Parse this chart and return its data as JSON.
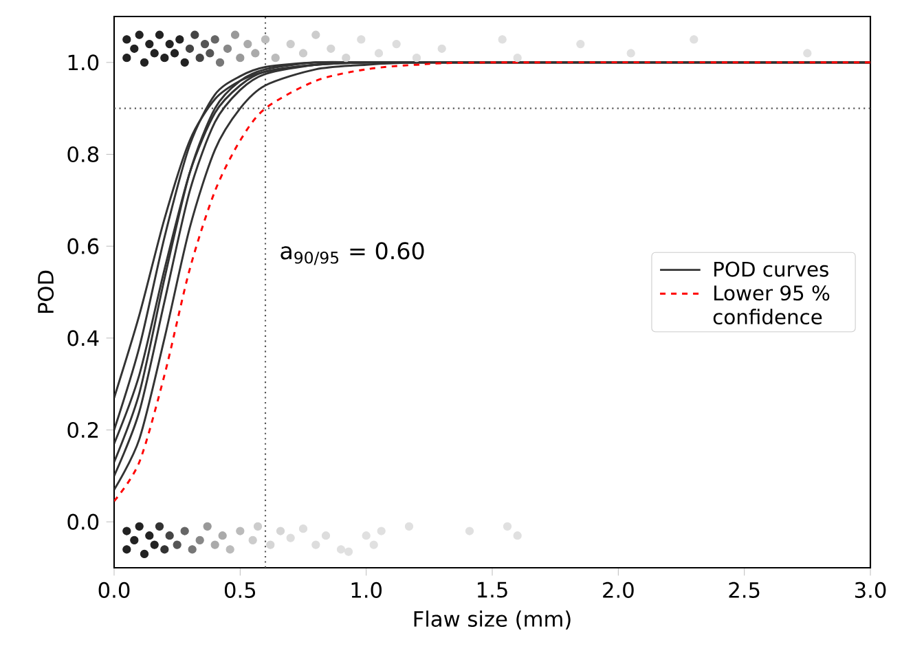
{
  "chart_data": {
    "type": "line",
    "xlabel": "Flaw size (mm)",
    "ylabel": "POD",
    "xlim": [
      0,
      3.0
    ],
    "ylim": [
      -0.1,
      1.1
    ],
    "xticks": [
      {
        "value": 0,
        "label": "0.0"
      },
      {
        "value": 0.5,
        "label": "0.5"
      },
      {
        "value": 1.0,
        "label": "1.0"
      },
      {
        "value": 1.5,
        "label": "1.5"
      },
      {
        "value": 2.0,
        "label": "2.0"
      },
      {
        "value": 2.5,
        "label": "2.5"
      },
      {
        "value": 3.0,
        "label": "3.0"
      }
    ],
    "yticks": [
      {
        "value": 0,
        "label": "0.0"
      },
      {
        "value": 0.2,
        "label": "0.2"
      },
      {
        "value": 0.4,
        "label": "0.4"
      },
      {
        "value": 0.6,
        "label": "0.6"
      },
      {
        "value": 0.8,
        "label": "0.8"
      },
      {
        "value": 1.0,
        "label": "1.0"
      }
    ],
    "legend": "right",
    "grid": false,
    "annotations": [
      "a$_{90/95}$ = 0.60"
    ],
    "ref_lines": [
      {
        "axis": "x",
        "value": 0.6,
        "color": "#555555",
        "line_style": "dotted"
      },
      {
        "axis": "y",
        "value": 0.9,
        "color": "#555555",
        "line_style": "dotted"
      }
    ],
    "series": [
      {
        "type": "scatter",
        "marker": "circle",
        "x": [
          0.05,
          0.05,
          0.08,
          0.1,
          0.12,
          0.14,
          0.16,
          0.18,
          0.2,
          0.22,
          0.24,
          0.26,
          0.28,
          0.3,
          0.32,
          0.34,
          0.36,
          0.38,
          0.4,
          0.42,
          0.45,
          0.48,
          0.5,
          0.53,
          0.56,
          0.6,
          0.64,
          0.7,
          0.75,
          0.8,
          0.86,
          0.92,
          0.98,
          1.05,
          1.12,
          1.2,
          1.3,
          1.54,
          1.6,
          1.85,
          2.05,
          2.3,
          2.75
        ],
        "values": [
          1.01,
          1.05,
          1.03,
          1.06,
          1.0,
          1.04,
          1.02,
          1.06,
          1.01,
          1.04,
          1.02,
          1.05,
          1.0,
          1.03,
          1.06,
          1.01,
          1.04,
          1.02,
          1.05,
          1.0,
          1.03,
          1.06,
          1.01,
          1.04,
          1.02,
          1.05,
          1.01,
          1.04,
          1.02,
          1.06,
          1.03,
          1.01,
          1.05,
          1.02,
          1.04,
          1.01,
          1.03,
          1.05,
          1.01,
          1.04,
          1.02,
          1.05,
          1.02
        ],
        "colors": [
          "#222222",
          "#222222",
          "#222222",
          "#222222",
          "#222222",
          "#222222",
          "#222222",
          "#222222",
          "#222222",
          "#222222",
          "#222222",
          "#222222",
          "#222222",
          "#444444",
          "#444444",
          "#444444",
          "#555555",
          "#555555",
          "#666666",
          "#777777",
          "#888888",
          "#999999",
          "#999999",
          "#aaaaaa",
          "#aaaaaa",
          "#bbbbbb",
          "#bbbbbb",
          "#cccccc",
          "#cccccc",
          "#cccccc",
          "#d5d5d5",
          "#d5d5d5",
          "#dddddd",
          "#dddddd",
          "#dddddd",
          "#dddddd",
          "#dddddd",
          "#e0e0e0",
          "#e0e0e0",
          "#e0e0e0",
          "#e0e0e0",
          "#e0e0e0",
          "#e0e0e0"
        ]
      },
      {
        "type": "scatter",
        "marker": "circle",
        "x": [
          0.05,
          0.05,
          0.08,
          0.1,
          0.12,
          0.14,
          0.16,
          0.18,
          0.2,
          0.22,
          0.25,
          0.28,
          0.31,
          0.34,
          0.37,
          0.4,
          0.43,
          0.46,
          0.5,
          0.55,
          0.57,
          0.62,
          0.66,
          0.7,
          0.75,
          0.8,
          0.84,
          0.9,
          0.93,
          1.0,
          1.03,
          1.06,
          1.17,
          1.41,
          1.56,
          1.6
        ],
        "values": [
          -0.02,
          -0.06,
          -0.04,
          -0.01,
          -0.07,
          -0.03,
          -0.05,
          -0.01,
          -0.06,
          -0.03,
          -0.05,
          -0.02,
          -0.06,
          -0.04,
          -0.01,
          -0.05,
          -0.03,
          -0.06,
          -0.02,
          -0.04,
          -0.01,
          -0.05,
          -0.02,
          -0.035,
          -0.015,
          -0.05,
          -0.03,
          -0.06,
          -0.065,
          -0.03,
          -0.05,
          -0.02,
          -0.01,
          -0.02,
          -0.01,
          -0.03
        ],
        "colors": [
          "#222222",
          "#222222",
          "#222222",
          "#222222",
          "#222222",
          "#222222",
          "#222222",
          "#333333",
          "#333333",
          "#444444",
          "#555555",
          "#666666",
          "#777777",
          "#888888",
          "#999999",
          "#aaaaaa",
          "#aaaaaa",
          "#bbbbbb",
          "#bbbbbb",
          "#cccccc",
          "#cccccc",
          "#d5d5d5",
          "#d5d5d5",
          "#dddddd",
          "#dddddd",
          "#dddddd",
          "#dddddd",
          "#e0e0e0",
          "#e0e0e0",
          "#e0e0e0",
          "#e0e0e0",
          "#e0e0e0",
          "#e0e0e0",
          "#e0e0e0",
          "#e0e0e0",
          "#e0e0e0"
        ]
      },
      {
        "name": "POD curves",
        "line_style": "solid",
        "color": "#333333",
        "x": [
          0,
          0.1,
          0.2,
          0.3,
          0.4,
          0.5,
          0.6,
          0.8,
          1.0,
          1.2,
          1.5,
          3.0
        ],
        "values": [
          0.27,
          0.45,
          0.66,
          0.83,
          0.92,
          0.96,
          0.98,
          0.995,
          1,
          1,
          1,
          1
        ]
      },
      {
        "line_style": "solid",
        "color": "#333333",
        "x": [
          0,
          0.1,
          0.2,
          0.3,
          0.4,
          0.5,
          0.6,
          0.8,
          1.0,
          1.2,
          1.5,
          3.0
        ],
        "values": [
          0.2,
          0.38,
          0.62,
          0.82,
          0.93,
          0.97,
          0.99,
          1,
          1,
          1,
          1,
          1
        ]
      },
      {
        "line_style": "solid",
        "color": "#333333",
        "x": [
          0,
          0.1,
          0.2,
          0.3,
          0.4,
          0.5,
          0.6,
          0.8,
          1.0,
          1.2,
          1.5,
          3.0
        ],
        "values": [
          0.17,
          0.32,
          0.55,
          0.76,
          0.89,
          0.95,
          0.98,
          0.995,
          1,
          1,
          1,
          1
        ]
      },
      {
        "line_style": "solid",
        "color": "#333333",
        "x": [
          0,
          0.1,
          0.2,
          0.3,
          0.4,
          0.5,
          0.6,
          0.8,
          1.0,
          1.2,
          1.5,
          3.0
        ],
        "values": [
          0.13,
          0.28,
          0.53,
          0.76,
          0.9,
          0.96,
          0.985,
          1,
          1,
          1,
          1,
          1
        ]
      },
      {
        "line_style": "solid",
        "color": "#333333",
        "x": [
          0,
          0.1,
          0.2,
          0.3,
          0.4,
          0.5,
          0.6,
          0.8,
          1.0,
          1.2,
          1.5,
          3.0
        ],
        "values": [
          0.1,
          0.24,
          0.48,
          0.72,
          0.87,
          0.94,
          0.975,
          0.995,
          1,
          1,
          1,
          1
        ]
      },
      {
        "line_style": "solid",
        "color": "#333333",
        "x": [
          0,
          0.1,
          0.2,
          0.3,
          0.4,
          0.5,
          0.6,
          0.8,
          1.0,
          1.2,
          1.5,
          3.0
        ],
        "values": [
          0.07,
          0.18,
          0.4,
          0.64,
          0.81,
          0.9,
          0.95,
          0.985,
          0.995,
          1,
          1,
          1
        ]
      },
      {
        "name": "Lower 95 % confidence",
        "line_style": "dashed",
        "color": "#ff0000",
        "x": [
          0,
          0.1,
          0.2,
          0.3,
          0.4,
          0.5,
          0.6,
          0.8,
          1.0,
          1.2,
          1.5,
          3.0
        ],
        "values": [
          0.045,
          0.13,
          0.32,
          0.55,
          0.72,
          0.83,
          0.9,
          0.96,
          0.985,
          0.995,
          1,
          1
        ]
      }
    ]
  }
}
